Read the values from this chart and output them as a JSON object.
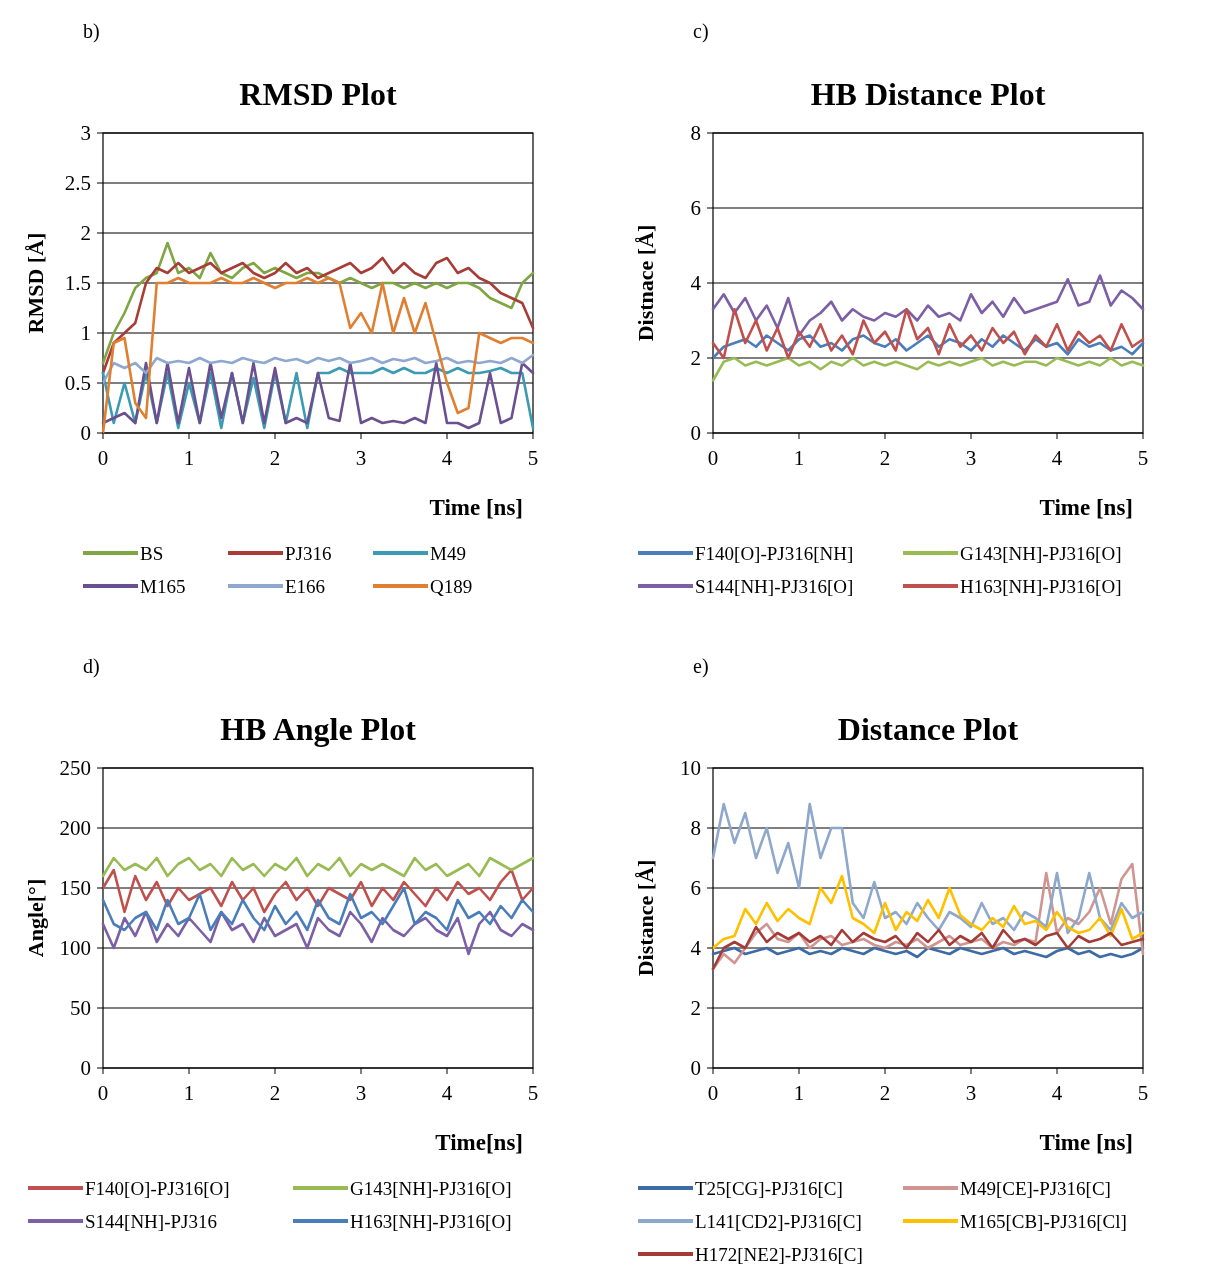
{
  "chart_data": [
    {
      "type": "line",
      "title": "RMSD Plot",
      "annotations": [
        "b)"
      ],
      "xlabel": "Time [ns]",
      "ylabel": "RMSD [Å]",
      "xlim": [
        0,
        5
      ],
      "xticks": [
        0,
        1,
        2,
        3,
        4,
        5
      ],
      "ylim": [
        0,
        3
      ],
      "yticks": [
        0,
        0.5,
        1,
        1.5,
        2,
        2.5,
        3
      ],
      "grid": "y",
      "legend": "bottom",
      "marker": "none",
      "line_style": "solid",
      "x": [
        0,
        0.125,
        0.25,
        0.375,
        0.5,
        0.625,
        0.75,
        0.875,
        1,
        1.125,
        1.25,
        1.375,
        1.5,
        1.625,
        1.75,
        1.875,
        2,
        2.125,
        2.25,
        2.375,
        2.5,
        2.625,
        2.75,
        2.875,
        3,
        3.125,
        3.25,
        3.375,
        3.5,
        3.625,
        3.75,
        3.875,
        4,
        4.125,
        4.25,
        4.375,
        4.5,
        4.625,
        4.75,
        4.875,
        5
      ],
      "series": [
        {
          "name": "BS",
          "color": "#7fa642",
          "values": [
            0.7,
            1.0,
            1.2,
            1.45,
            1.55,
            1.6,
            1.9,
            1.6,
            1.65,
            1.55,
            1.8,
            1.6,
            1.55,
            1.65,
            1.7,
            1.6,
            1.65,
            1.6,
            1.55,
            1.6,
            1.6,
            1.55,
            1.5,
            1.55,
            1.5,
            1.45,
            1.5,
            1.5,
            1.45,
            1.5,
            1.45,
            1.5,
            1.45,
            1.5,
            1.5,
            1.45,
            1.35,
            1.3,
            1.25,
            1.5,
            1.6
          ]
        },
        {
          "name": "PJ316",
          "color": "#a83c36",
          "values": [
            0.6,
            0.9,
            1.0,
            1.1,
            1.5,
            1.65,
            1.6,
            1.7,
            1.6,
            1.65,
            1.7,
            1.6,
            1.65,
            1.7,
            1.6,
            1.55,
            1.6,
            1.7,
            1.6,
            1.65,
            1.55,
            1.6,
            1.65,
            1.7,
            1.6,
            1.65,
            1.75,
            1.6,
            1.7,
            1.6,
            1.55,
            1.7,
            1.75,
            1.6,
            1.65,
            1.55,
            1.5,
            1.4,
            1.35,
            1.3,
            1.05
          ]
        },
        {
          "name": "M49",
          "color": "#3a9bb3",
          "values": [
            0.6,
            0.1,
            0.5,
            0.1,
            0.6,
            0.1,
            0.6,
            0.05,
            0.5,
            0.1,
            0.6,
            0.05,
            0.6,
            0.1,
            0.55,
            0.05,
            0.6,
            0.1,
            0.6,
            0.05,
            0.6,
            0.6,
            0.65,
            0.6,
            0.6,
            0.6,
            0.65,
            0.6,
            0.65,
            0.6,
            0.6,
            0.65,
            0.6,
            0.65,
            0.6,
            0.6,
            0.62,
            0.65,
            0.6,
            0.6,
            0.05
          ]
        },
        {
          "name": "M165",
          "color": "#6b5090",
          "values": [
            0.1,
            0.15,
            0.2,
            0.1,
            0.7,
            0.1,
            0.7,
            0.1,
            0.65,
            0.1,
            0.7,
            0.15,
            0.6,
            0.1,
            0.7,
            0.1,
            0.65,
            0.1,
            0.15,
            0.1,
            0.6,
            0.15,
            0.12,
            0.7,
            0.1,
            0.15,
            0.1,
            0.12,
            0.1,
            0.15,
            0.1,
            0.7,
            0.1,
            0.1,
            0.05,
            0.1,
            0.6,
            0.1,
            0.15,
            0.7,
            0.6
          ]
        },
        {
          "name": "E166",
          "color": "#8ea8d0",
          "values": [
            0.5,
            0.7,
            0.65,
            0.7,
            0.6,
            0.75,
            0.7,
            0.72,
            0.7,
            0.75,
            0.7,
            0.72,
            0.7,
            0.75,
            0.72,
            0.7,
            0.75,
            0.72,
            0.74,
            0.7,
            0.75,
            0.72,
            0.75,
            0.7,
            0.72,
            0.75,
            0.7,
            0.74,
            0.72,
            0.75,
            0.7,
            0.72,
            0.75,
            0.7,
            0.72,
            0.7,
            0.72,
            0.7,
            0.75,
            0.7,
            0.78
          ]
        },
        {
          "name": "Q189",
          "color": "#e07f30",
          "values": [
            0,
            0.9,
            0.95,
            0.3,
            0.15,
            1.5,
            1.5,
            1.55,
            1.5,
            1.5,
            1.5,
            1.55,
            1.5,
            1.5,
            1.55,
            1.5,
            1.45,
            1.5,
            1.5,
            1.55,
            1.5,
            1.55,
            1.5,
            1.05,
            1.2,
            1.0,
            1.5,
            1.0,
            1.35,
            1.0,
            1.3,
            0.9,
            0.5,
            0.2,
            0.25,
            1.0,
            0.95,
            0.9,
            0.95,
            0.95,
            0.9
          ]
        }
      ]
    },
    {
      "type": "line",
      "title": "HB Distance Plot",
      "annotations": [
        "c)"
      ],
      "xlabel": "Time [ns]",
      "ylabel": "Distnace [Å]",
      "xlim": [
        0,
        5
      ],
      "xticks": [
        0,
        1,
        2,
        3,
        4,
        5
      ],
      "ylim": [
        0,
        8
      ],
      "yticks": [
        0,
        2,
        4,
        6,
        8
      ],
      "grid": "y",
      "legend": "bottom",
      "marker": "none",
      "line_style": "solid",
      "x": [
        0,
        0.125,
        0.25,
        0.375,
        0.5,
        0.625,
        0.75,
        0.875,
        1,
        1.125,
        1.25,
        1.375,
        1.5,
        1.625,
        1.75,
        1.875,
        2,
        2.125,
        2.25,
        2.375,
        2.5,
        2.625,
        2.75,
        2.875,
        3,
        3.125,
        3.25,
        3.375,
        3.5,
        3.625,
        3.75,
        3.875,
        4,
        4.125,
        4.25,
        4.375,
        4.5,
        4.625,
        4.75,
        4.875,
        5
      ],
      "series": [
        {
          "name": "F140[O]-PJ316[NH]",
          "color": "#4a7ebb",
          "values": [
            2.0,
            2.3,
            2.4,
            2.5,
            2.3,
            2.6,
            2.4,
            2.2,
            2.5,
            2.6,
            2.3,
            2.4,
            2.2,
            2.5,
            2.6,
            2.4,
            2.3,
            2.5,
            2.2,
            2.4,
            2.6,
            2.3,
            2.5,
            2.4,
            2.2,
            2.5,
            2.3,
            2.6,
            2.4,
            2.2,
            2.5,
            2.3,
            2.4,
            2.1,
            2.5,
            2.3,
            2.4,
            2.2,
            2.3,
            2.1,
            2.4
          ]
        },
        {
          "name": "G143[NH]-PJ316[O]",
          "color": "#98bb54",
          "values": [
            1.4,
            1.9,
            2.0,
            1.8,
            1.9,
            1.8,
            1.9,
            2.0,
            1.8,
            1.9,
            1.7,
            1.9,
            1.8,
            2.0,
            1.8,
            1.9,
            1.8,
            1.9,
            1.8,
            1.7,
            1.9,
            1.8,
            1.9,
            1.8,
            1.9,
            2.0,
            1.8,
            1.9,
            1.8,
            1.9,
            1.9,
            1.8,
            2.0,
            1.9,
            1.8,
            1.9,
            1.8,
            2.0,
            1.8,
            1.9,
            1.8
          ]
        },
        {
          "name": "S144[NH]-PJ316[O]",
          "color": "#7d5fa5",
          "values": [
            3.3,
            3.7,
            3.2,
            3.6,
            3.0,
            3.4,
            2.8,
            3.6,
            2.6,
            3.0,
            3.2,
            3.5,
            3.0,
            3.3,
            3.1,
            3.0,
            3.2,
            3.1,
            3.3,
            3.0,
            3.4,
            3.1,
            3.2,
            3.0,
            3.7,
            3.2,
            3.5,
            3.1,
            3.6,
            3.2,
            3.3,
            3.4,
            3.5,
            4.1,
            3.4,
            3.5,
            4.2,
            3.4,
            3.8,
            3.6,
            3.3
          ]
        },
        {
          "name": "H163[NH]-PJ316[O]",
          "color": "#c0504d",
          "values": [
            2.4,
            2.0,
            3.3,
            2.4,
            3.0,
            2.2,
            2.8,
            2.0,
            2.7,
            2.3,
            2.9,
            2.2,
            2.6,
            2.1,
            3.0,
            2.4,
            2.7,
            2.2,
            3.3,
            2.5,
            2.8,
            2.1,
            2.9,
            2.3,
            2.6,
            2.2,
            2.8,
            2.4,
            2.7,
            2.1,
            2.6,
            2.3,
            2.9,
            2.2,
            2.7,
            2.4,
            2.6,
            2.2,
            2.9,
            2.3,
            2.5
          ]
        }
      ]
    },
    {
      "type": "line",
      "title": "HB Angle Plot",
      "annotations": [
        "d)"
      ],
      "xlabel": "Time[ns]",
      "ylabel": "Angle[°]",
      "xlim": [
        0,
        5
      ],
      "xticks": [
        0,
        1,
        2,
        3,
        4,
        5
      ],
      "ylim": [
        0,
        250
      ],
      "yticks": [
        0,
        50,
        100,
        150,
        200,
        250
      ],
      "grid": "y",
      "legend": "bottom",
      "marker": "none",
      "line_style": "solid",
      "x": [
        0,
        0.125,
        0.25,
        0.375,
        0.5,
        0.625,
        0.75,
        0.875,
        1,
        1.125,
        1.25,
        1.375,
        1.5,
        1.625,
        1.75,
        1.875,
        2,
        2.125,
        2.25,
        2.375,
        2.5,
        2.625,
        2.75,
        2.875,
        3,
        3.125,
        3.25,
        3.375,
        3.5,
        3.625,
        3.75,
        3.875,
        4,
        4.125,
        4.25,
        4.375,
        4.5,
        4.625,
        4.75,
        4.875,
        5
      ],
      "series": [
        {
          "name": "F140[O]-PJ316[O]",
          "color": "#c0504d",
          "values": [
            150,
            165,
            130,
            160,
            140,
            155,
            135,
            150,
            140,
            145,
            150,
            135,
            155,
            140,
            150,
            130,
            145,
            155,
            140,
            150,
            135,
            150,
            145,
            140,
            155,
            135,
            150,
            140,
            155,
            145,
            135,
            150,
            140,
            155,
            145,
            150,
            140,
            155,
            165,
            140,
            150
          ]
        },
        {
          "name": "G143[NH]-PJ316[O]",
          "color": "#98bb54",
          "values": [
            160,
            175,
            165,
            170,
            165,
            175,
            160,
            170,
            175,
            165,
            170,
            160,
            175,
            165,
            170,
            160,
            170,
            165,
            175,
            160,
            170,
            165,
            175,
            160,
            170,
            165,
            170,
            165,
            160,
            175,
            165,
            170,
            160,
            165,
            170,
            160,
            175,
            170,
            165,
            170,
            175
          ]
        },
        {
          "name": "S144[NH]-PJ316",
          "color": "#7d5fa5",
          "values": [
            120,
            100,
            125,
            110,
            130,
            105,
            120,
            110,
            125,
            115,
            105,
            130,
            115,
            120,
            105,
            125,
            110,
            115,
            120,
            100,
            125,
            115,
            110,
            130,
            120,
            105,
            125,
            115,
            110,
            120,
            125,
            115,
            110,
            125,
            95,
            120,
            130,
            115,
            110,
            120,
            115
          ]
        },
        {
          "name": "H163[NH]-PJ316[O]",
          "color": "#4a7ebb",
          "values": [
            140,
            120,
            115,
            125,
            130,
            115,
            140,
            120,
            125,
            145,
            115,
            130,
            120,
            140,
            125,
            115,
            135,
            120,
            130,
            115,
            140,
            125,
            120,
            145,
            125,
            130,
            120,
            135,
            150,
            120,
            130,
            125,
            115,
            140,
            125,
            130,
            120,
            135,
            125,
            140,
            130
          ]
        }
      ]
    },
    {
      "type": "line",
      "title": "Distance Plot",
      "annotations": [
        "e)"
      ],
      "xlabel": "Time [ns]",
      "ylabel": "Distance [Å]",
      "xlim": [
        0,
        5
      ],
      "xticks": [
        0,
        1,
        2,
        3,
        4,
        5
      ],
      "ylim": [
        0,
        10
      ],
      "yticks": [
        0,
        2,
        4,
        6,
        8,
        10
      ],
      "grid": "y",
      "legend": "bottom",
      "marker": "none",
      "line_style": "solid",
      "x": [
        0,
        0.125,
        0.25,
        0.375,
        0.5,
        0.625,
        0.75,
        0.875,
        1,
        1.125,
        1.25,
        1.375,
        1.5,
        1.625,
        1.75,
        1.875,
        2,
        2.125,
        2.25,
        2.375,
        2.5,
        2.625,
        2.75,
        2.875,
        3,
        3.125,
        3.25,
        3.375,
        3.5,
        3.625,
        3.75,
        3.875,
        4,
        4.125,
        4.25,
        4.375,
        4.5,
        4.625,
        4.75,
        4.875,
        5
      ],
      "series": [
        {
          "name": "T25[CG]-PJ316[C]",
          "color": "#3d6ba5",
          "values": [
            3.8,
            3.9,
            4.0,
            3.8,
            3.9,
            4.0,
            3.8,
            3.9,
            4.0,
            3.8,
            3.9,
            3.8,
            4.0,
            3.9,
            3.8,
            4.0,
            3.9,
            3.8,
            3.9,
            3.7,
            4.0,
            3.9,
            3.8,
            4.0,
            3.9,
            3.8,
            3.9,
            4.0,
            3.8,
            3.9,
            3.8,
            3.7,
            3.9,
            4.0,
            3.8,
            3.9,
            3.7,
            3.8,
            3.7,
            3.8,
            4.0
          ]
        },
        {
          "name": "M49[CE]-PJ316[C]",
          "color": "#d09590",
          "values": [
            3.3,
            3.8,
            3.5,
            4.0,
            4.5,
            4.8,
            4.3,
            4.2,
            4.5,
            4.0,
            4.3,
            4.4,
            4.1,
            4.2,
            4.3,
            4.1,
            4.0,
            4.2,
            4.1,
            4.3,
            4.0,
            4.2,
            4.4,
            4.1,
            4.2,
            4.3,
            4.0,
            4.2,
            4.1,
            4.3,
            4.2,
            6.5,
            4.5,
            5.0,
            4.8,
            5.2,
            6.0,
            4.8,
            6.3,
            6.8,
            3.8
          ]
        },
        {
          "name": "L141[CD2]-PJ316[C]",
          "color": "#8ea8cc",
          "values": [
            7.0,
            8.8,
            7.5,
            8.5,
            7.0,
            8.0,
            6.5,
            7.5,
            6.0,
            8.8,
            7.0,
            8.0,
            8.0,
            5.5,
            5.0,
            6.2,
            5.0,
            5.2,
            4.8,
            5.5,
            5.0,
            4.6,
            5.2,
            5.0,
            4.7,
            5.5,
            4.8,
            5.0,
            4.6,
            5.2,
            5.0,
            4.7,
            6.5,
            4.5,
            5.0,
            6.5,
            5.0,
            4.6,
            5.5,
            5.0,
            5.2
          ]
        },
        {
          "name": "M165[CB]-PJ316[Cl]",
          "color": "#ffc000",
          "values": [
            4.0,
            4.3,
            4.4,
            5.3,
            4.8,
            5.5,
            4.9,
            5.3,
            5.0,
            4.8,
            6.0,
            5.5,
            6.4,
            5.0,
            4.8,
            4.5,
            5.5,
            4.6,
            5.2,
            4.9,
            5.6,
            5.0,
            6.0,
            5.1,
            4.8,
            4.6,
            5.0,
            4.7,
            5.4,
            4.8,
            4.9,
            4.6,
            5.2,
            4.7,
            4.5,
            4.6,
            5.0,
            4.4,
            5.3,
            4.3,
            4.5
          ]
        },
        {
          "name": "H172[NE2]-PJ316[C]",
          "color": "#a33c36",
          "values": [
            3.3,
            4.0,
            4.2,
            4.0,
            4.7,
            4.2,
            4.5,
            4.3,
            4.5,
            4.2,
            4.4,
            4.1,
            4.6,
            4.2,
            4.5,
            4.3,
            4.2,
            4.4,
            4.0,
            4.5,
            4.2,
            4.6,
            4.1,
            4.4,
            4.2,
            4.5,
            4.0,
            4.6,
            4.2,
            4.3,
            4.1,
            4.4,
            4.5,
            4.0,
            4.4,
            4.2,
            4.3,
            4.5,
            4.1,
            4.2,
            4.3
          ]
        }
      ]
    }
  ]
}
